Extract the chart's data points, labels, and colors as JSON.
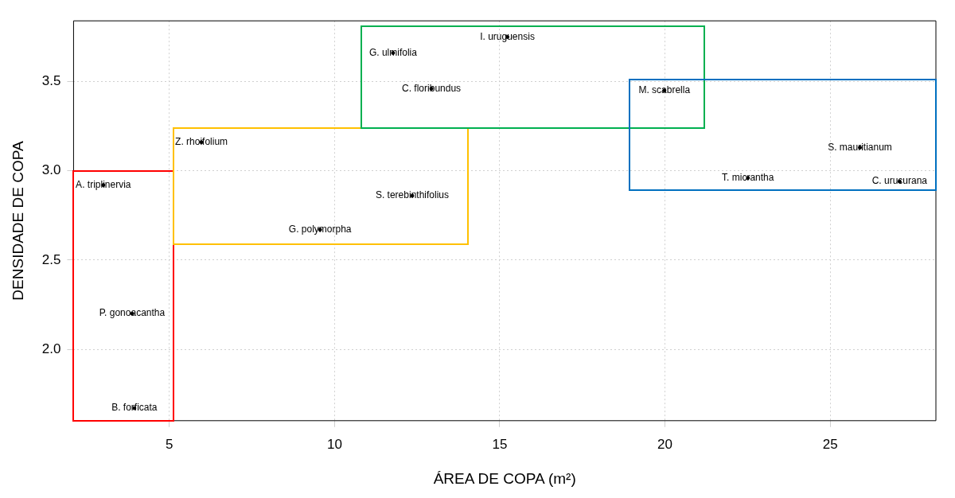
{
  "chart_data": {
    "type": "scatter",
    "xlabel": "ÁREA DE COPA (m²)",
    "ylabel": "DENSIDADE DE COPA",
    "xlim": [
      2.1,
      28.2
    ],
    "xticks": [
      5,
      10,
      15,
      20,
      25
    ],
    "ylim": [
      1.6,
      3.84
    ],
    "yticks": [
      {
        "value": 2,
        "label": "2.0"
      },
      {
        "value": 2.5,
        "label": "2.5"
      },
      {
        "value": 3,
        "label": "3.0"
      },
      {
        "value": 3.5,
        "label": "3.5"
      }
    ],
    "grid": true,
    "legend": false,
    "marker": "circle",
    "series": [
      {
        "type": "scatter",
        "color": "#000000",
        "x": [
          3.0,
          3.87,
          3.94,
          5.97,
          12.35,
          9.56,
          11.77,
          15.23,
          12.93,
          19.98,
          25.9,
          22.51,
          27.1
        ],
        "values": [
          2.92,
          2.2,
          1.67,
          3.16,
          2.86,
          2.67,
          3.66,
          3.75,
          3.46,
          3.45,
          3.13,
          2.96,
          2.94
        ],
        "value_labels": [
          "A. triplinervia",
          "P. gonoacantha",
          "B. forficata",
          "Z. rhoifolium",
          "S. terebinthifolius",
          "G. polymorpha",
          "G. ulmifolia",
          "I. uruguensis",
          "C. floribundus",
          "M. scabrella",
          "S. mauritianum",
          "T. micrantha",
          "C. urucurana"
        ]
      }
    ]
  }
}
